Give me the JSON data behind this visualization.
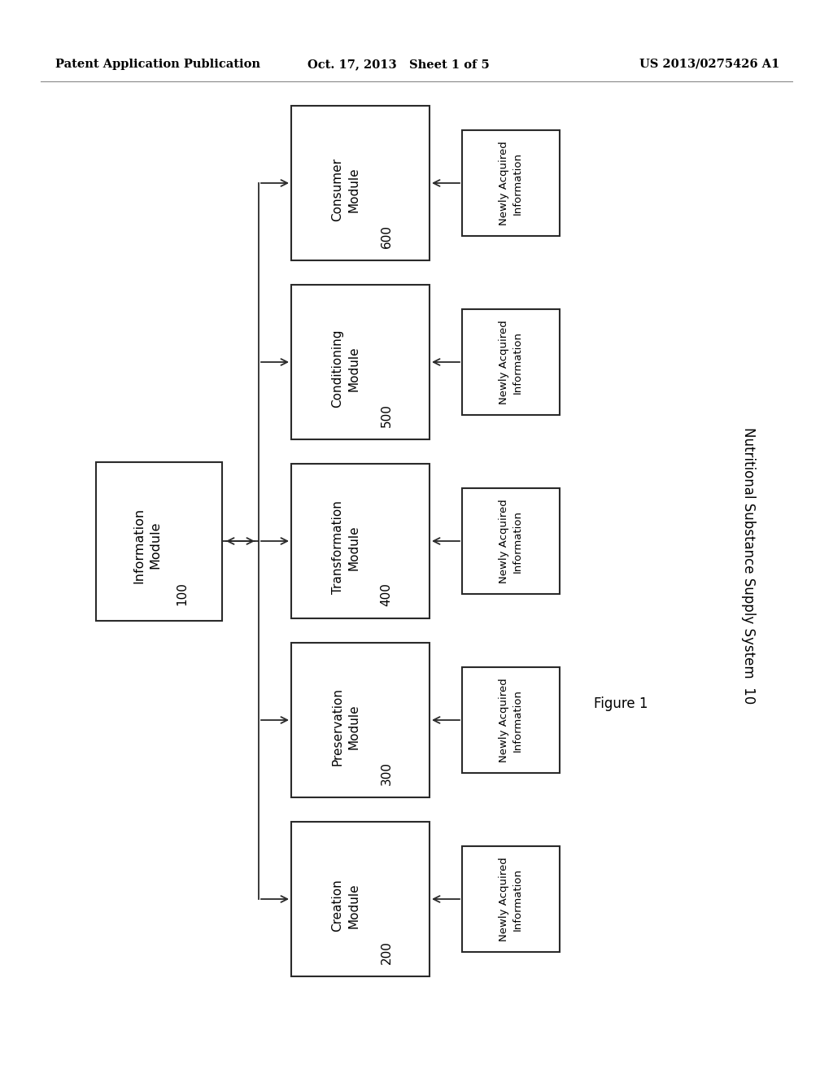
{
  "header_left": "Patent Application Publication",
  "header_center": "Oct. 17, 2013   Sheet 1 of 5",
  "header_right": "US 2013/0275426 A1",
  "figure_label": "Figure 1",
  "system_label": "Nutritional Substance Supply System",
  "system_number": "10",
  "info_module_label": "Information\nModule",
  "info_module_number": "100",
  "modules": [
    {
      "label": "Consumer\nModule",
      "number": "600"
    },
    {
      "label": "Conditioning\nModule",
      "number": "500"
    },
    {
      "label": "Transformation\nModule",
      "number": "400"
    },
    {
      "label": "Preservation\nModule",
      "number": "300"
    },
    {
      "label": "Creation\nModule",
      "number": "200"
    }
  ],
  "newly_acquired_label": "Newly Acquired\nInformation",
  "bg_color": "#ffffff",
  "box_edge_color": "#2a2a2a",
  "text_color": "#000000",
  "line_color": "#2a2a2a",
  "header_line_color": "#888888"
}
